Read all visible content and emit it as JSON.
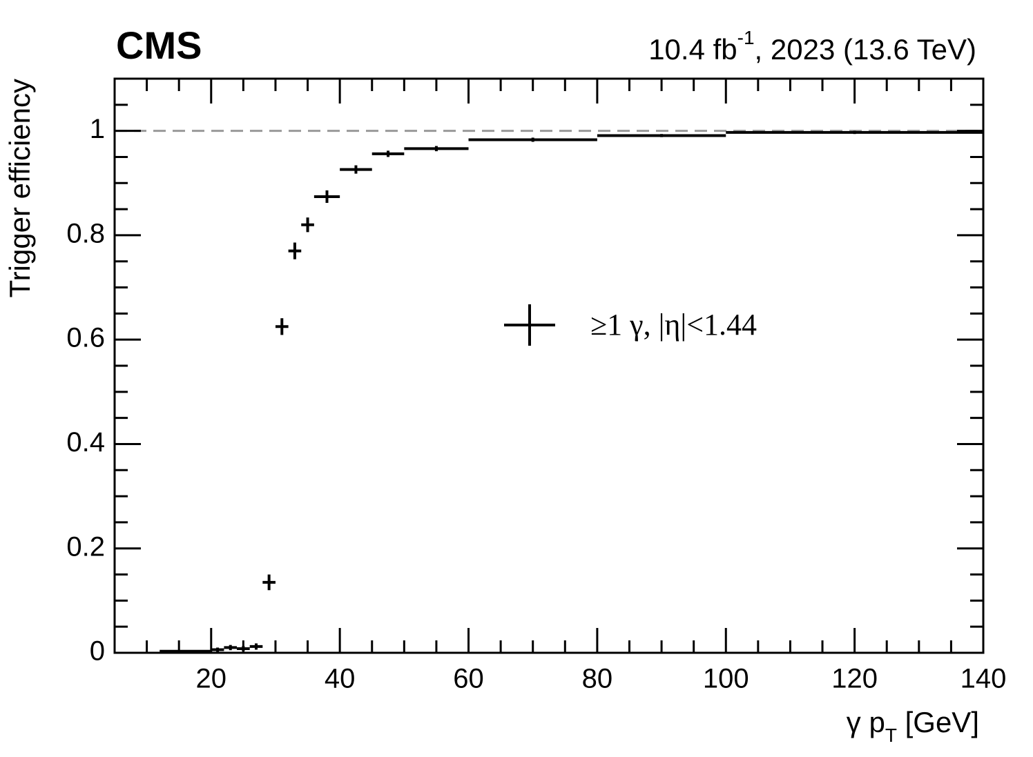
{
  "chart_data": {
    "type": "errorbar",
    "experiment": "CMS",
    "lumi_text": {
      "lumi": "10.4 fb",
      "exponent": "-1",
      "rest": ", 2023 (13.6 TeV)"
    },
    "x_label": {
      "symbol": "γ p",
      "subscript": "T",
      "unit": " [GeV]"
    },
    "y_label": "Trigger efficiency",
    "xlim": [
      5,
      140
    ],
    "ylim": [
      0,
      1.1
    ],
    "xticks": [
      20,
      40,
      60,
      80,
      100,
      120,
      140
    ],
    "yticks": [
      0,
      0.2,
      0.4,
      0.6,
      0.8,
      1
    ],
    "hline": 1,
    "hline_color": "#999999",
    "series": [
      {
        "name": "≥1 γ, |η|<1.44",
        "color": "#000000",
        "x": [
          16,
          21,
          23,
          25,
          27,
          29,
          31,
          33,
          35,
          38,
          42.5,
          47.5,
          55,
          70,
          90,
          120
        ],
        "xerr": [
          4,
          1,
          1,
          1,
          1,
          1,
          1,
          1,
          1,
          2,
          2.5,
          2.5,
          5,
          10,
          10,
          20
        ],
        "values": [
          0.003,
          0.006,
          0.01,
          0.008,
          0.012,
          0.135,
          0.625,
          0.77,
          0.82,
          0.874,
          0.926,
          0.956,
          0.966,
          0.983,
          0.991,
          0.997
        ],
        "yerr": [
          0.002,
          0.004,
          0.005,
          0.005,
          0.006,
          0.015,
          0.016,
          0.016,
          0.014,
          0.012,
          0.008,
          0.006,
          0.005,
          0.004,
          0.003,
          0.003
        ]
      }
    ],
    "legend": "center-right"
  }
}
